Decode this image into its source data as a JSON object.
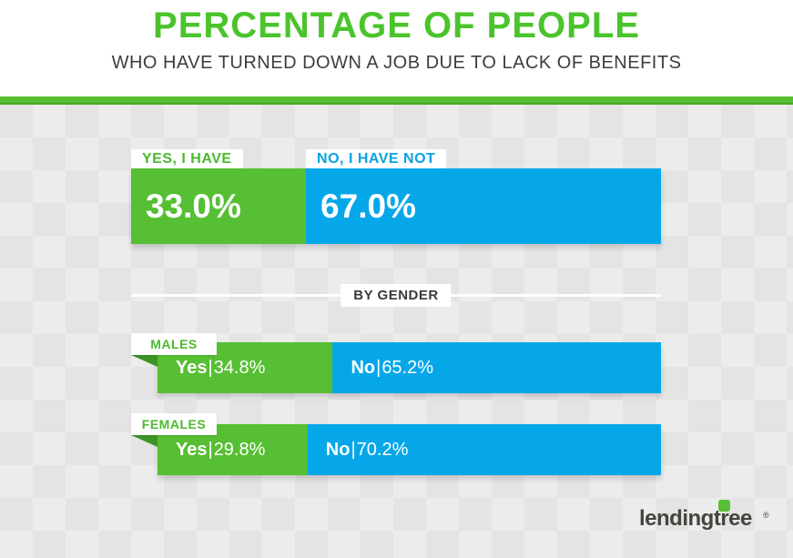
{
  "header": {
    "title": "PERCENTAGE OF PEOPLE",
    "subtitle": "WHO HAVE TURNED DOWN A JOB DUE TO LACK OF BENEFITS"
  },
  "colors": {
    "green": "#56bf33",
    "blue": "#06a7e9",
    "title_green": "#4bc42c",
    "fold_dark_green": "#3c9426",
    "dark_text": "#3d3d3d",
    "checker_light": "#ececec",
    "checker_dark": "#e4e4e4"
  },
  "chart_data": {
    "type": "bar",
    "orientation": "horizontal-stacked",
    "unit": "%",
    "title": "PERCENTAGE OF PEOPLE",
    "subtitle": "WHO HAVE TURNED DOWN A JOB DUE TO LACK OF BENEFITS",
    "overall": {
      "yes_label": "YES, I HAVE",
      "yes_value": 33.0,
      "yes_display": "33.0%",
      "no_label": "NO, I HAVE NOT",
      "no_value": 67.0,
      "no_display": "67.0%"
    },
    "by_gender": {
      "section_label": "BY GENDER",
      "separator": "|",
      "groups": [
        {
          "label": "MALES",
          "yes_prefix": "Yes",
          "yes_value": 34.8,
          "yes_display": "34.8%",
          "no_prefix": "No",
          "no_value": 65.2,
          "no_display": "65.2%"
        },
        {
          "label": "FEMALES",
          "yes_prefix": "Yes",
          "yes_value": 29.8,
          "yes_display": "29.8%",
          "no_prefix": "No",
          "no_value": 70.2,
          "no_display": "70.2%"
        }
      ]
    }
  },
  "footer": {
    "logo_text": "lendingtree",
    "logo_tm": "®"
  }
}
